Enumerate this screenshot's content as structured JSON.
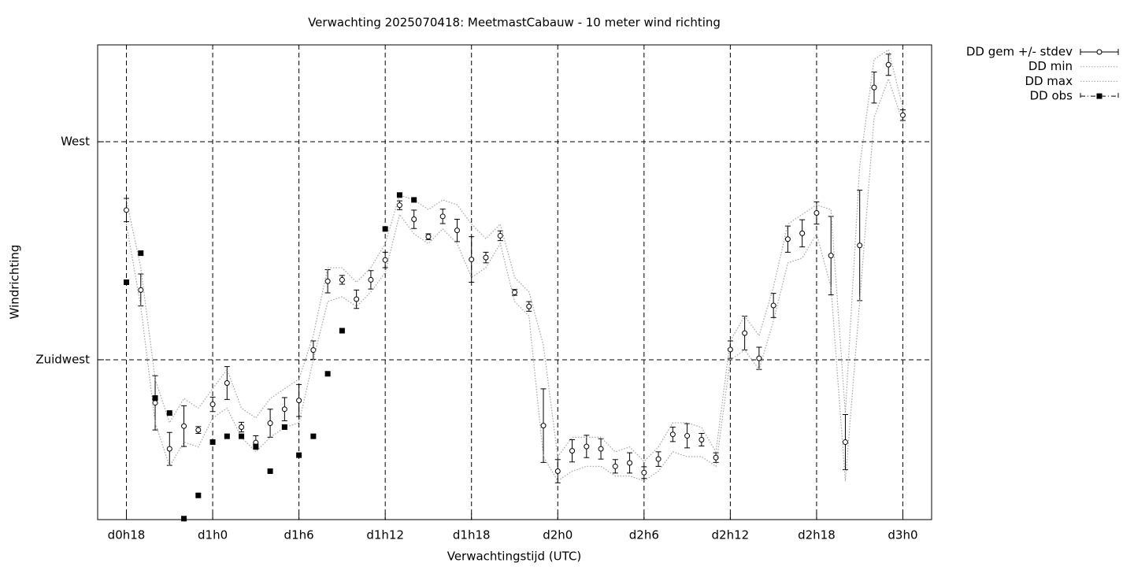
{
  "chart_data": {
    "type": "errorbar",
    "title": "Verwachting 2025070418: MeetmastCabauw - 10 meter wind richting",
    "x_label": "Verwachtingstijd (UTC)",
    "y_label": "Windrichting",
    "xlim": [
      16,
      74
    ],
    "ylim": [
      192,
      290
    ],
    "xticks": [
      {
        "value": 18,
        "label": "d0h18"
      },
      {
        "value": 24,
        "label": "d1h0"
      },
      {
        "value": 30,
        "label": "d1h6"
      },
      {
        "value": 36,
        "label": "d1h12"
      },
      {
        "value": 42,
        "label": "d1h18"
      },
      {
        "value": 48,
        "label": "d2h0"
      },
      {
        "value": 54,
        "label": "d2h6"
      },
      {
        "value": 60,
        "label": "d2h12"
      },
      {
        "value": 66,
        "label": "d2h18"
      },
      {
        "value": 72,
        "label": "d3h0"
      }
    ],
    "yticks": [
      {
        "value": 225,
        "label": "Zuidwest"
      },
      {
        "value": 270,
        "label": "West"
      }
    ],
    "grid": true,
    "legend": "outside-top-right",
    "x": [
      18,
      19,
      20,
      21,
      22,
      23,
      24,
      25,
      26,
      27,
      28,
      29,
      30,
      31,
      32,
      33,
      34,
      35,
      36,
      37,
      38,
      39,
      40,
      41,
      42,
      43,
      44,
      45,
      46,
      47,
      48,
      49,
      50,
      51,
      52,
      53,
      54,
      55,
      56,
      57,
      58,
      59,
      60,
      61,
      62,
      63,
      64,
      65,
      66,
      67,
      68,
      69,
      70,
      71,
      72
    ],
    "series": [
      {
        "name": "DD gem +/- stdev",
        "style": "errorbars",
        "color": "#000000",
        "values": [
          255.9,
          239.4,
          216.1,
          206.6,
          211.3,
          210.5,
          215.8,
          220.2,
          211.1,
          207.9,
          211.9,
          214.8,
          216.6,
          227.0,
          241.2,
          241.5,
          237.5,
          241.5,
          245.6,
          256.9,
          254.0,
          250.4,
          254.6,
          251.7,
          245.7,
          246.1,
          250.6,
          238.9,
          236.0,
          211.4,
          202.0,
          206.2,
          207.1,
          206.6,
          203.0,
          203.7,
          201.7,
          204.5,
          209.6,
          209.3,
          208.5,
          204.8,
          227.1,
          230.5,
          225.3,
          236.2,
          249.9,
          251.1,
          255.3,
          246.5,
          208.0,
          248.6,
          281.2,
          285.9,
          275.5
        ],
        "stdev": [
          2.4,
          3.3,
          5.6,
          3.4,
          4.2,
          0.7,
          1.5,
          3.4,
          1.0,
          1.4,
          2.9,
          2.4,
          3.3,
          1.9,
          2.4,
          0.9,
          1.9,
          1.9,
          1.6,
          0.9,
          1.9,
          0.6,
          1.5,
          2.3,
          4.7,
          1.1,
          1.0,
          0.6,
          1.0,
          7.6,
          2.4,
          2.3,
          2.3,
          2.1,
          1.4,
          2.1,
          1.2,
          1.5,
          1.5,
          2.5,
          1.3,
          1.0,
          1.8,
          3.5,
          2.3,
          2.5,
          2.7,
          2.8,
          2.3,
          8.1,
          5.7,
          11.4,
          3.2,
          2.2,
          1.1
        ]
      },
      {
        "name": "DD min",
        "style": "dotted",
        "color": "#a0a0a0",
        "values": [
          253,
          236,
          212,
          203,
          208,
          207,
          213,
          215,
          209,
          206,
          209,
          211,
          212,
          225,
          237,
          238,
          236,
          239,
          243,
          255,
          251,
          249,
          252,
          249,
          242,
          244,
          249,
          237,
          234,
          205,
          200,
          202,
          203,
          203,
          201,
          201,
          200,
          202,
          206,
          205,
          205,
          203,
          225,
          227,
          223,
          233,
          245,
          246,
          251,
          240,
          200,
          237,
          275,
          283,
          274
        ]
      },
      {
        "name": "DD max",
        "style": "dotted",
        "color": "#a0a0a0",
        "values": [
          258,
          244,
          221,
          212,
          217,
          215,
          219,
          223,
          215,
          213,
          217,
          219,
          221,
          230,
          244,
          244,
          241,
          244,
          249,
          259,
          258,
          256,
          258,
          257,
          253,
          250,
          253,
          242,
          239,
          228,
          205,
          209,
          209,
          209,
          206,
          207,
          204,
          207,
          212,
          212,
          211,
          206,
          229,
          234,
          230,
          240,
          253,
          255,
          257,
          256,
          214,
          265,
          287,
          289,
          277
        ]
      },
      {
        "name": "DD obs",
        "style": "squares",
        "color": "#000000",
        "values": [
          241.0,
          247.0,
          217.1,
          214.0,
          192.2,
          197.0,
          208.0,
          209.2,
          209.2,
          207.1,
          202.0,
          211.1,
          205.3,
          209.2,
          222.1,
          231.0,
          null,
          null,
          252.0,
          259.0,
          258.0,
          null,
          null,
          null,
          null,
          null,
          null,
          null,
          null,
          null,
          null,
          null,
          null,
          null,
          null,
          null,
          null,
          null,
          null,
          null,
          null,
          null,
          null,
          null,
          null,
          null,
          null,
          null,
          null,
          null,
          null,
          null,
          null,
          null,
          null
        ]
      }
    ]
  }
}
